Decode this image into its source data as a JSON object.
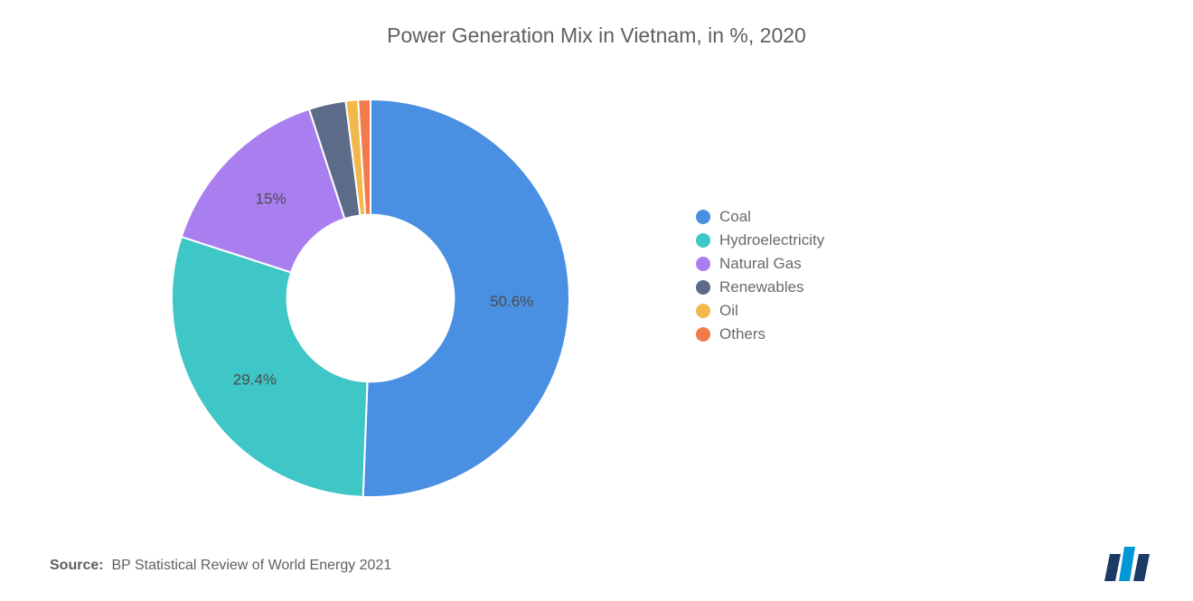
{
  "title": "Power Generation Mix in Vietnam, in %, 2020",
  "source_label": "Source:",
  "source_text": "BP Statistical Review of World Energy 2021",
  "chart": {
    "type": "donut",
    "inner_radius_ratio": 0.42,
    "background_color": "#ffffff",
    "title_fontsize": 23,
    "title_color": "#5f5f5f",
    "label_fontsize": 17,
    "label_color": "#4a4a4a",
    "legend_fontsize": 17,
    "legend_color": "#6a6a6a",
    "start_angle_deg": -90,
    "series": [
      {
        "name": "Coal",
        "value": 50.6,
        "color": "#4a90e2",
        "label": "50.6%",
        "show_label": true
      },
      {
        "name": "Hydroelectricity",
        "value": 29.4,
        "color": "#3fc6c6",
        "label": "29.4%",
        "show_label": true
      },
      {
        "name": "Natural Gas",
        "value": 15.0,
        "color": "#a97ff0",
        "label": "15%",
        "show_label": true
      },
      {
        "name": "Renewables",
        "value": 3.0,
        "color": "#5b6b88",
        "label": "",
        "show_label": false
      },
      {
        "name": "Oil",
        "value": 1.0,
        "color": "#f2b84b",
        "label": "",
        "show_label": false
      },
      {
        "name": "Others",
        "value": 1.0,
        "color": "#f27b4b",
        "label": "",
        "show_label": false
      }
    ]
  },
  "logo": {
    "bar1_color": "#1b3a66",
    "bar2_color": "#0097d6",
    "bar3_color": "#1b3a66"
  }
}
